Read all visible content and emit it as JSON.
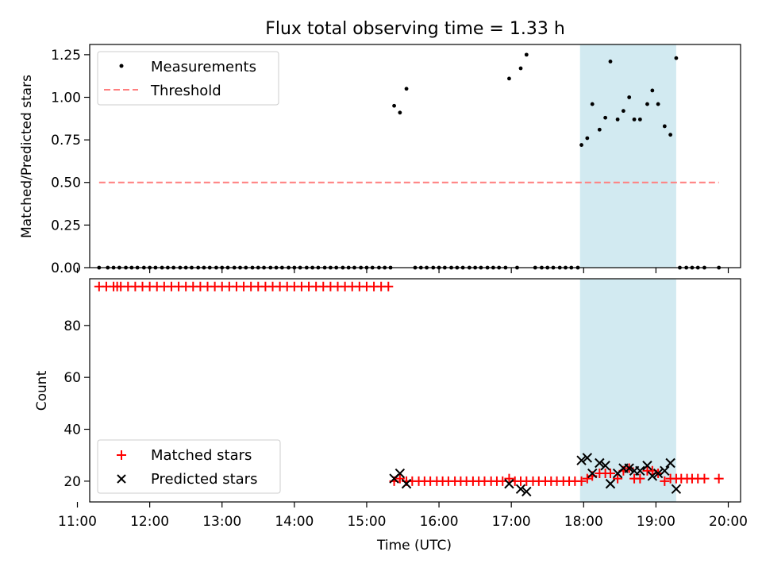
{
  "title": "Flux total observing time = 1.33 h",
  "chart_data": [
    {
      "type": "scatter",
      "panel": "top",
      "title": "Flux total observing time = 1.33 h",
      "xlabel": "",
      "ylabel": "Matched/Predicted stars",
      "xlim": [
        11.17,
        20.17
      ],
      "ylim": [
        0,
        1.31
      ],
      "yticks": [
        0.0,
        0.25,
        0.5,
        0.75,
        1.0,
        1.25
      ],
      "ytick_labels": [
        "0.00",
        "0.25",
        "0.50",
        "0.75",
        "1.00",
        "1.25"
      ],
      "grid": false,
      "legend_position": "upper-left",
      "shaded_region": {
        "x": [
          17.95,
          19.28
        ],
        "color": "#add8e6"
      },
      "series": [
        {
          "name": "Measurements",
          "color": "#000000",
          "marker": "dot",
          "zero_times": [
            11.3,
            11.42,
            11.5,
            11.58,
            11.67,
            11.75,
            11.83,
            11.92,
            12.0,
            12.08,
            12.17,
            12.25,
            12.33,
            12.42,
            12.5,
            12.58,
            12.67,
            12.75,
            12.83,
            12.92,
            13.0,
            13.08,
            13.17,
            13.25,
            13.33,
            13.42,
            13.5,
            13.58,
            13.67,
            13.75,
            13.83,
            13.92,
            14.0,
            14.08,
            14.17,
            14.25,
            14.33,
            14.42,
            14.5,
            14.58,
            14.67,
            14.75,
            14.83,
            14.92,
            15.0,
            15.08,
            15.17,
            15.25,
            15.33,
            15.67,
            15.75,
            15.83,
            15.92,
            16.0,
            16.08,
            16.17,
            16.25,
            16.33,
            16.42,
            16.5,
            16.58,
            16.67,
            16.75,
            16.83,
            16.92,
            17.08,
            17.33,
            17.42,
            17.5,
            17.58,
            17.67,
            17.75,
            17.83,
            17.92,
            19.33,
            19.42,
            19.5,
            19.58,
            19.67,
            19.87
          ],
          "points": [
            [
              15.38,
              0.95
            ],
            [
              15.46,
              0.91
            ],
            [
              15.55,
              1.05
            ],
            [
              16.97,
              1.11
            ],
            [
              17.13,
              1.17
            ],
            [
              17.21,
              1.25
            ],
            [
              17.97,
              0.72
            ],
            [
              18.05,
              0.76
            ],
            [
              18.12,
              0.96
            ],
            [
              18.22,
              0.81
            ],
            [
              18.3,
              0.88
            ],
            [
              18.37,
              1.21
            ],
            [
              18.47,
              0.87
            ],
            [
              18.55,
              0.92
            ],
            [
              18.63,
              1.0
            ],
            [
              18.7,
              0.87
            ],
            [
              18.78,
              0.87
            ],
            [
              18.88,
              0.96
            ],
            [
              18.95,
              1.04
            ],
            [
              19.03,
              0.96
            ],
            [
              19.12,
              0.83
            ],
            [
              19.2,
              0.78
            ],
            [
              19.28,
              1.23
            ]
          ]
        },
        {
          "name": "Threshold",
          "color": "#ff7f7f",
          "style": "dashed",
          "x": [
            11.3,
            19.87
          ],
          "y": [
            0.5,
            0.5
          ]
        }
      ]
    },
    {
      "type": "scatter",
      "panel": "bottom",
      "xlabel": "Time (UTC)",
      "ylabel": "Count",
      "xlim": [
        11.17,
        20.17
      ],
      "ylim": [
        12,
        98
      ],
      "yticks": [
        20,
        40,
        60,
        80
      ],
      "ytick_labels": [
        "20",
        "40",
        "60",
        "80"
      ],
      "xticks": [
        11,
        12,
        13,
        14,
        15,
        16,
        17,
        18,
        19,
        20
      ],
      "xtick_labels": [
        "11:00",
        "12:00",
        "13:00",
        "14:00",
        "15:00",
        "16:00",
        "17:00",
        "18:00",
        "19:00",
        "20:00"
      ],
      "grid": false,
      "legend_position": "lower-left",
      "shaded_region": {
        "x": [
          17.95,
          19.28
        ],
        "color": "#add8e6"
      },
      "series": [
        {
          "name": "Matched stars",
          "color": "#ff0000",
          "marker": "plus",
          "high_times": [
            11.3,
            11.4,
            11.5,
            11.55,
            11.6,
            11.7,
            11.8,
            11.9,
            12.0,
            12.1,
            12.2,
            12.3,
            12.4,
            12.5,
            12.6,
            12.7,
            12.8,
            12.9,
            13.0,
            13.1,
            13.2,
            13.3,
            13.4,
            13.5,
            13.6,
            13.7,
            13.8,
            13.9,
            14.0,
            14.1,
            14.2,
            14.3,
            14.4,
            14.5,
            14.6,
            14.7,
            14.8,
            14.9,
            15.0,
            15.1,
            15.2,
            15.3
          ],
          "high_value": 95,
          "low_points": [
            [
              15.38,
              20
            ],
            [
              15.46,
              21
            ],
            [
              15.55,
              20
            ],
            [
              15.63,
              20
            ],
            [
              15.72,
              20
            ],
            [
              15.8,
              20
            ],
            [
              15.88,
              20
            ],
            [
              15.97,
              20
            ],
            [
              16.05,
              20
            ],
            [
              16.13,
              20
            ],
            [
              16.22,
              20
            ],
            [
              16.3,
              20
            ],
            [
              16.38,
              20
            ],
            [
              16.47,
              20
            ],
            [
              16.55,
              20
            ],
            [
              16.63,
              20
            ],
            [
              16.72,
              20
            ],
            [
              16.8,
              20
            ],
            [
              16.88,
              20
            ],
            [
              16.97,
              21
            ],
            [
              17.05,
              20
            ],
            [
              17.13,
              20
            ],
            [
              17.21,
              20
            ],
            [
              17.3,
              20
            ],
            [
              17.38,
              20
            ],
            [
              17.47,
              20
            ],
            [
              17.55,
              20
            ],
            [
              17.63,
              20
            ],
            [
              17.72,
              20
            ],
            [
              17.8,
              20
            ],
            [
              17.88,
              20
            ],
            [
              17.97,
              20
            ],
            [
              18.05,
              21
            ],
            [
              18.12,
              22
            ],
            [
              18.22,
              23
            ],
            [
              18.3,
              23
            ],
            [
              18.37,
              23
            ],
            [
              18.47,
              21
            ],
            [
              18.55,
              24
            ],
            [
              18.63,
              25
            ],
            [
              18.7,
              21
            ],
            [
              18.78,
              21
            ],
            [
              18.88,
              24
            ],
            [
              18.95,
              24
            ],
            [
              19.03,
              23
            ],
            [
              19.12,
              20
            ],
            [
              19.2,
              21
            ],
            [
              19.28,
              21
            ],
            [
              19.35,
              21
            ],
            [
              19.43,
              21
            ],
            [
              19.5,
              21
            ],
            [
              19.58,
              21
            ],
            [
              19.67,
              21
            ],
            [
              19.87,
              21
            ]
          ]
        },
        {
          "name": "Predicted stars",
          "color": "#000000",
          "marker": "x",
          "points": [
            [
              15.38,
              21
            ],
            [
              15.46,
              23
            ],
            [
              15.55,
              19
            ],
            [
              16.97,
              19
            ],
            [
              17.13,
              17
            ],
            [
              17.21,
              16
            ],
            [
              17.97,
              28
            ],
            [
              18.05,
              29
            ],
            [
              18.12,
              23
            ],
            [
              18.22,
              27
            ],
            [
              18.3,
              26
            ],
            [
              18.37,
              19
            ],
            [
              18.47,
              23
            ],
            [
              18.55,
              25
            ],
            [
              18.63,
              25
            ],
            [
              18.7,
              24
            ],
            [
              18.78,
              24
            ],
            [
              18.88,
              26
            ],
            [
              18.95,
              22
            ],
            [
              19.03,
              23
            ],
            [
              19.12,
              24
            ],
            [
              19.2,
              27
            ],
            [
              19.28,
              17
            ]
          ]
        }
      ]
    }
  ]
}
